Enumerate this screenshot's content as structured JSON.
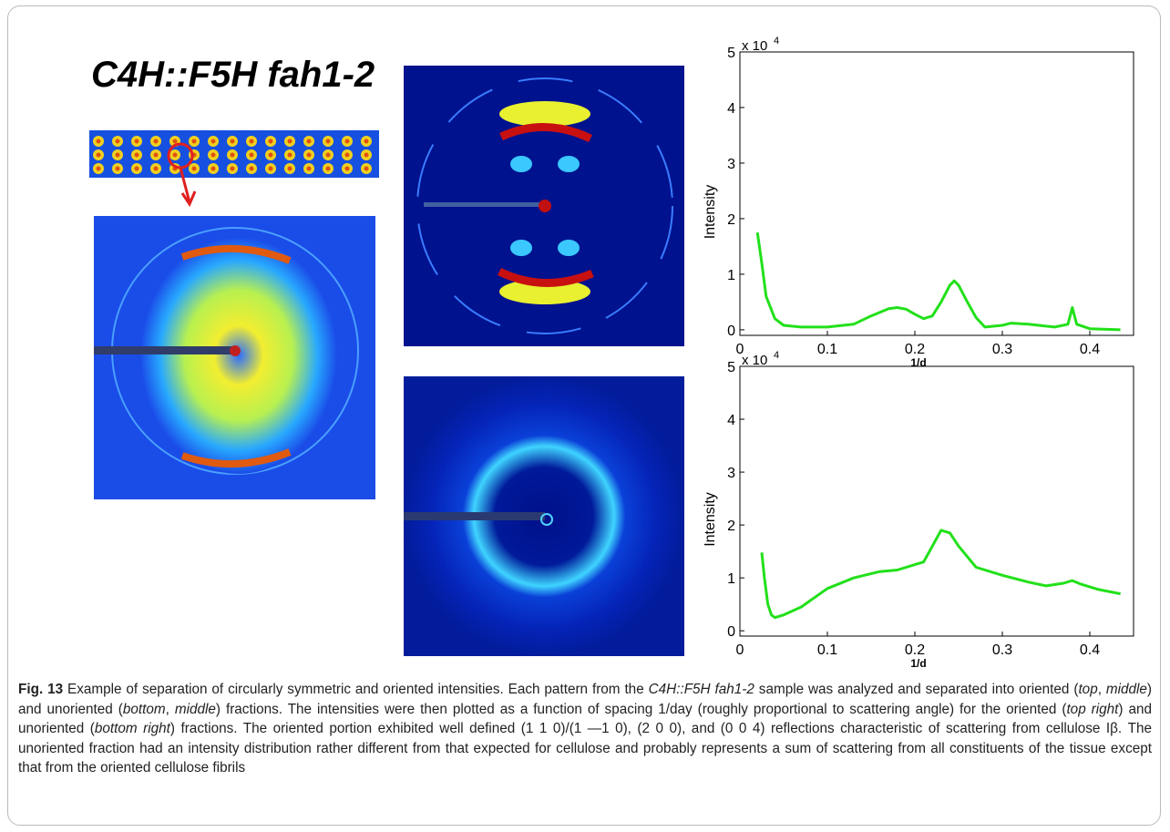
{
  "figure": {
    "panel_title": "C4H::F5H fah1-2"
  },
  "chart_data": [
    {
      "type": "line",
      "y_label": "Intensity",
      "x_label": "1/d",
      "y_multiplier": "x 10",
      "y_multiplier_exp": "4",
      "x": [
        0.02,
        0.025,
        0.03,
        0.04,
        0.05,
        0.07,
        0.1,
        0.13,
        0.15,
        0.17,
        0.18,
        0.19,
        0.2,
        0.21,
        0.22,
        0.23,
        0.24,
        0.245,
        0.25,
        0.26,
        0.27,
        0.28,
        0.3,
        0.31,
        0.33,
        0.36,
        0.375,
        0.38,
        0.385,
        0.4,
        0.435
      ],
      "series": [
        {
          "color": "#22e01a",
          "values": [
            1.75,
            1.2,
            0.6,
            0.2,
            0.08,
            0.05,
            0.05,
            0.1,
            0.25,
            0.38,
            0.4,
            0.37,
            0.28,
            0.2,
            0.25,
            0.5,
            0.8,
            0.88,
            0.8,
            0.5,
            0.22,
            0.05,
            0.08,
            0.12,
            0.1,
            0.05,
            0.1,
            0.4,
            0.1,
            0.02,
            0.0
          ]
        }
      ],
      "xlim": [
        0,
        0.45
      ],
      "ylim": [
        -0.1,
        5
      ],
      "xticks": [
        0,
        0.1,
        0.2,
        0.3,
        0.4
      ],
      "yticks": [
        0,
        1,
        2,
        3,
        4,
        5
      ]
    },
    {
      "type": "line",
      "y_label": "Intensity",
      "x_label": "1/d",
      "y_multiplier": "x 10",
      "y_multiplier_exp": "4",
      "x": [
        0.025,
        0.028,
        0.032,
        0.036,
        0.04,
        0.05,
        0.07,
        0.1,
        0.13,
        0.16,
        0.18,
        0.2,
        0.21,
        0.22,
        0.23,
        0.24,
        0.25,
        0.27,
        0.3,
        0.33,
        0.35,
        0.37,
        0.38,
        0.39,
        0.41,
        0.435
      ],
      "series": [
        {
          "color": "#22e01a",
          "values": [
            1.48,
            1.0,
            0.5,
            0.3,
            0.25,
            0.3,
            0.45,
            0.8,
            1.0,
            1.12,
            1.15,
            1.25,
            1.3,
            1.6,
            1.9,
            1.85,
            1.6,
            1.2,
            1.05,
            0.92,
            0.85,
            0.9,
            0.95,
            0.88,
            0.78,
            0.7
          ]
        }
      ],
      "xlim": [
        0,
        0.45
      ],
      "ylim": [
        -0.1,
        5
      ],
      "xticks": [
        0,
        0.1,
        0.2,
        0.3,
        0.4
      ],
      "yticks": [
        0,
        1,
        2,
        3,
        4,
        5
      ]
    }
  ],
  "caption": {
    "label": "Fig. 13",
    "runs": [
      {
        "text": " Example of separation of circularly symmetric and oriented intensities. Each pattern from the ",
        "italic": false
      },
      {
        "text": "C4H::F5H fah1-2",
        "italic": true
      },
      {
        "text": " sample was analyzed and separated into oriented (",
        "italic": false
      },
      {
        "text": "top",
        "italic": true
      },
      {
        "text": ", ",
        "italic": false
      },
      {
        "text": "middle",
        "italic": true
      },
      {
        "text": ") and unoriented (",
        "italic": false
      },
      {
        "text": "bottom",
        "italic": true
      },
      {
        "text": ", ",
        "italic": false
      },
      {
        "text": "middle",
        "italic": true
      },
      {
        "text": ") fractions. The intensities were then plotted as a function of spacing 1/day (roughly proportional to scattering angle) for the oriented (",
        "italic": false
      },
      {
        "text": "top right",
        "italic": true
      },
      {
        "text": ") and unoriented (",
        "italic": false
      },
      {
        "text": "bottom right",
        "italic": true
      },
      {
        "text": ") fractions. The oriented portion exhibited well defined (1 1 0)/(1 —1 0), (2 0 0), and (0 0 4) reflections characteristic of scattering from cellulose Iβ. The unoriented fraction had an intensity distribution rather different from that expected for cellulose and probably represents a sum of scattering from all constituents of the tissue except that from the oriented cellulose fibrils",
        "italic": false
      }
    ]
  }
}
